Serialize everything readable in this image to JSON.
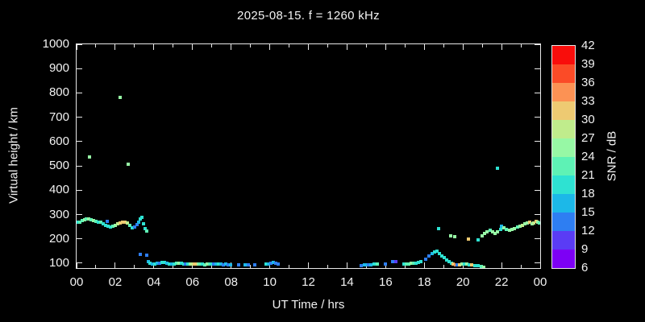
{
  "title": "2025-08-15. f = 1260 kHz",
  "chart_data": {
    "type": "scatter",
    "title": "2025-08-15. f = 1260 kHz",
    "xlabel": "UT Time / hrs",
    "ylabel": "Virtual height / km",
    "colorbar_label": "SNR / dB",
    "xlim": [
      0,
      24
    ],
    "ylim": [
      80,
      1000
    ],
    "background": "#000000",
    "axis_color": "#e8e8e8",
    "x_major_tick_hours": [
      0,
      2,
      4,
      6,
      8,
      10,
      12,
      14,
      16,
      18,
      20,
      22,
      24
    ],
    "x_tick_labels": [
      "00",
      "02",
      "04",
      "06",
      "08",
      "10",
      "12",
      "14",
      "16",
      "18",
      "20",
      "22",
      "00"
    ],
    "y_ticks": [
      100,
      200,
      300,
      400,
      500,
      600,
      700,
      800,
      900,
      1000
    ],
    "colorbar_ticks": [
      6,
      9,
      12,
      15,
      18,
      21,
      24,
      27,
      30,
      33,
      36,
      39,
      42
    ],
    "colormap_low_to_high": [
      "#7d00f5",
      "#5a3cf5",
      "#2e7ef2",
      "#1cb8e8",
      "#2ee2d2",
      "#5ef2b5",
      "#97f8a5",
      "#c0ec8c",
      "#eeca72",
      "#fc9254",
      "#fb4b27",
      "#f90d0b"
    ],
    "point_fields": [
      "ut_hours",
      "virtual_height_km",
      "snr_db"
    ],
    "points": [
      [
        0.04,
        268,
        20
      ],
      [
        0.17,
        270,
        21
      ],
      [
        0.29,
        274,
        22
      ],
      [
        0.42,
        278,
        24
      ],
      [
        0.5,
        281,
        22
      ],
      [
        0.63,
        282,
        25
      ],
      [
        0.75,
        280,
        22
      ],
      [
        0.88,
        276,
        25
      ],
      [
        1.0,
        272,
        22
      ],
      [
        1.13,
        270,
        20
      ],
      [
        1.25,
        268,
        21
      ],
      [
        1.38,
        262,
        18
      ],
      [
        1.5,
        256,
        18
      ],
      [
        1.59,
        272,
        13
      ],
      [
        1.63,
        252,
        18
      ],
      [
        1.75,
        250,
        20
      ],
      [
        1.88,
        252,
        22
      ],
      [
        2.0,
        256,
        24
      ],
      [
        2.13,
        262,
        27
      ],
      [
        2.25,
        266,
        30
      ],
      [
        2.38,
        269,
        32
      ],
      [
        2.5,
        268,
        31
      ],
      [
        2.63,
        264,
        28
      ],
      [
        2.75,
        256,
        22
      ],
      [
        2.88,
        246,
        19
      ],
      [
        3.0,
        250,
        14
      ],
      [
        3.13,
        260,
        13
      ],
      [
        3.21,
        270,
        15
      ],
      [
        3.29,
        282,
        18
      ],
      [
        3.38,
        288,
        18
      ],
      [
        3.46,
        262,
        20
      ],
      [
        3.54,
        242,
        20
      ],
      [
        3.63,
        232,
        21
      ],
      [
        0.67,
        537,
        25
      ],
      [
        2.25,
        782,
        25
      ],
      [
        2.67,
        507,
        25
      ],
      [
        3.3,
        136,
        13
      ],
      [
        3.63,
        134,
        13
      ],
      [
        3.71,
        106,
        17
      ],
      [
        3.79,
        101,
        18
      ],
      [
        3.92,
        98,
        17
      ],
      [
        4.04,
        97,
        19
      ],
      [
        4.17,
        99,
        17
      ],
      [
        4.29,
        100,
        14
      ],
      [
        4.42,
        103,
        20
      ],
      [
        4.54,
        102,
        18
      ],
      [
        4.67,
        100,
        17
      ],
      [
        4.79,
        98,
        19
      ],
      [
        4.92,
        97,
        15
      ],
      [
        5.04,
        98,
        18
      ],
      [
        5.17,
        99,
        22
      ],
      [
        5.29,
        100,
        24
      ],
      [
        5.42,
        99,
        20
      ],
      [
        5.54,
        97,
        18
      ],
      [
        5.63,
        95,
        14
      ],
      [
        5.75,
        95,
        20
      ],
      [
        5.88,
        96,
        26
      ],
      [
        5.96,
        97,
        29
      ],
      [
        6.08,
        98,
        31
      ],
      [
        6.17,
        98,
        30
      ],
      [
        6.29,
        97,
        25
      ],
      [
        6.38,
        96,
        21
      ],
      [
        6.5,
        95,
        19
      ],
      [
        6.63,
        94,
        23
      ],
      [
        6.75,
        95,
        25
      ],
      [
        6.88,
        96,
        21
      ],
      [
        6.96,
        97,
        18
      ],
      [
        7.08,
        96,
        14
      ],
      [
        7.21,
        95,
        16
      ],
      [
        7.33,
        96,
        18
      ],
      [
        7.46,
        95,
        15
      ],
      [
        7.58,
        94,
        13
      ],
      [
        7.71,
        95,
        16
      ],
      [
        7.83,
        94,
        14
      ],
      [
        7.96,
        94,
        15
      ],
      [
        8.38,
        93,
        14
      ],
      [
        8.71,
        93,
        15
      ],
      [
        8.88,
        94,
        14
      ],
      [
        9.21,
        93,
        14
      ],
      [
        9.79,
        95,
        18
      ],
      [
        9.92,
        97,
        16
      ],
      [
        10.04,
        99,
        14
      ],
      [
        10.17,
        103,
        15
      ],
      [
        10.29,
        100,
        13
      ],
      [
        10.42,
        98,
        14
      ],
      [
        14.75,
        91,
        14
      ],
      [
        14.88,
        92,
        15
      ],
      [
        15.0,
        93,
        17
      ],
      [
        15.13,
        93,
        14
      ],
      [
        15.25,
        94,
        17
      ],
      [
        15.42,
        95,
        20
      ],
      [
        15.58,
        96,
        22
      ],
      [
        16.0,
        95,
        13
      ],
      [
        16.38,
        105,
        13
      ],
      [
        16.54,
        108,
        11
      ],
      [
        16.96,
        96,
        19
      ],
      [
        17.08,
        97,
        21
      ],
      [
        17.21,
        98,
        23
      ],
      [
        17.33,
        99,
        24
      ],
      [
        17.46,
        100,
        22
      ],
      [
        17.58,
        101,
        20
      ],
      [
        17.71,
        103,
        19
      ],
      [
        17.83,
        106,
        18
      ],
      [
        18.08,
        115,
        12
      ],
      [
        18.25,
        129,
        12
      ],
      [
        18.42,
        141,
        15
      ],
      [
        18.54,
        147,
        18
      ],
      [
        18.67,
        150,
        19
      ],
      [
        18.79,
        141,
        20
      ],
      [
        18.92,
        131,
        20
      ],
      [
        19.04,
        122,
        19
      ],
      [
        19.17,
        114,
        19
      ],
      [
        19.29,
        107,
        18
      ],
      [
        19.42,
        100,
        19
      ],
      [
        19.5,
        96,
        30
      ],
      [
        19.63,
        94,
        33
      ],
      [
        19.71,
        93,
        14
      ],
      [
        19.83,
        94,
        32
      ],
      [
        19.96,
        95,
        25
      ],
      [
        20.08,
        96,
        18
      ],
      [
        20.21,
        97,
        24
      ],
      [
        20.33,
        93,
        18
      ],
      [
        20.46,
        92,
        31
      ],
      [
        20.63,
        90,
        18
      ],
      [
        20.79,
        89,
        19
      ],
      [
        20.96,
        87,
        22
      ],
      [
        21.08,
        84,
        24
      ],
      [
        18.75,
        242,
        19
      ],
      [
        19.38,
        212,
        25
      ],
      [
        19.58,
        209,
        25
      ],
      [
        20.29,
        199,
        31
      ],
      [
        20.79,
        196,
        19
      ],
      [
        21.0,
        214,
        24
      ],
      [
        21.13,
        221,
        26
      ],
      [
        21.25,
        229,
        24
      ],
      [
        21.42,
        234,
        22
      ],
      [
        21.54,
        228,
        24
      ],
      [
        21.67,
        222,
        26
      ],
      [
        21.79,
        228,
        24
      ],
      [
        21.96,
        240,
        19
      ],
      [
        22.0,
        252,
        15
      ],
      [
        22.13,
        245,
        24
      ],
      [
        22.25,
        240,
        22
      ],
      [
        22.42,
        236,
        24
      ],
      [
        22.54,
        238,
        26
      ],
      [
        22.67,
        242,
        24
      ],
      [
        22.83,
        248,
        22
      ],
      [
        22.96,
        252,
        25
      ],
      [
        23.08,
        257,
        27
      ],
      [
        23.21,
        261,
        24
      ],
      [
        23.33,
        264,
        26
      ],
      [
        23.46,
        269,
        31
      ],
      [
        23.58,
        262,
        25
      ],
      [
        23.67,
        266,
        28
      ],
      [
        23.79,
        272,
        31
      ],
      [
        23.88,
        268,
        26
      ],
      [
        23.96,
        264,
        22
      ],
      [
        21.8,
        490,
        20
      ]
    ]
  }
}
